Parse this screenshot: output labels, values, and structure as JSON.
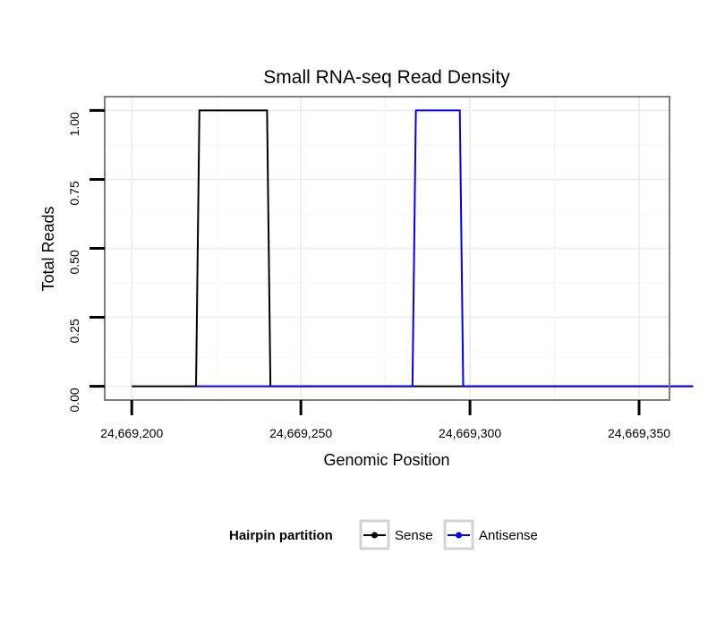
{
  "chart_data": {
    "type": "line",
    "title": "Small RNA-seq Read Density",
    "xlabel": "Genomic Position",
    "ylabel": "Total Reads",
    "xlim": [
      24669192,
      24669359
    ],
    "ylim": [
      -0.05,
      1.05
    ],
    "x_ticks": [
      24669200,
      24669250,
      24669300,
      24669350
    ],
    "x_tick_labels": [
      "24,669,200",
      "24,669,250",
      "24,669,300",
      "24,669,350"
    ],
    "y_ticks": [
      0,
      0.25,
      0.5,
      0.75,
      1
    ],
    "y_tick_labels": [
      "0.00",
      "0.25",
      "0.50",
      "0.75",
      "1.00"
    ],
    "grid": true,
    "legend": {
      "title": "Hairpin partition",
      "position": "bottom"
    },
    "series": [
      {
        "name": "Sense",
        "color": "#000000",
        "x": [
          24669200,
          24669219,
          24669220,
          24669240,
          24669241,
          24669366
        ],
        "y": [
          0,
          0,
          1,
          1,
          0,
          0
        ]
      },
      {
        "name": "Antisense",
        "color": "#0000ff",
        "x": [
          24669219,
          24669283,
          24669284,
          24669297,
          24669298,
          24669366
        ],
        "y": [
          0,
          0,
          1,
          1,
          0,
          0
        ]
      }
    ]
  }
}
